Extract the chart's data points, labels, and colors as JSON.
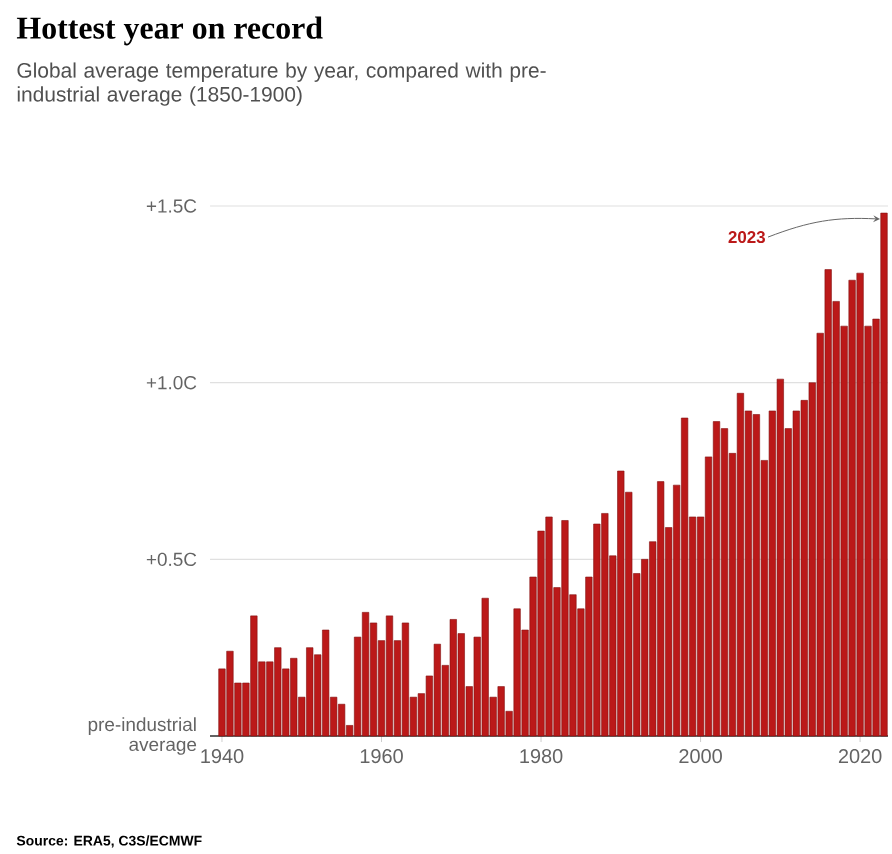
{
  "chart_data": {
    "type": "bar",
    "title": "Hottest year on record",
    "subtitle": "Global average temperature by year, compared with pre-industrial average (1850-1900)",
    "x": [
      1940,
      1941,
      1942,
      1943,
      1944,
      1945,
      1946,
      1947,
      1948,
      1949,
      1950,
      1951,
      1952,
      1953,
      1954,
      1955,
      1956,
      1957,
      1958,
      1959,
      1960,
      1961,
      1962,
      1963,
      1964,
      1965,
      1966,
      1967,
      1968,
      1969,
      1970,
      1971,
      1972,
      1973,
      1974,
      1975,
      1976,
      1977,
      1978,
      1979,
      1980,
      1981,
      1982,
      1983,
      1984,
      1985,
      1986,
      1987,
      1988,
      1989,
      1990,
      1991,
      1992,
      1993,
      1994,
      1995,
      1996,
      1997,
      1998,
      1999,
      2000,
      2001,
      2002,
      2003,
      2004,
      2005,
      2006,
      2007,
      2008,
      2009,
      2010,
      2011,
      2012,
      2013,
      2014,
      2015,
      2016,
      2017,
      2018,
      2019,
      2020,
      2021,
      2022,
      2023
    ],
    "values": [
      0.19,
      0.24,
      0.15,
      0.15,
      0.34,
      0.21,
      0.21,
      0.25,
      0.19,
      0.22,
      0.11,
      0.25,
      0.23,
      0.3,
      0.11,
      0.09,
      0.03,
      0.28,
      0.35,
      0.32,
      0.27,
      0.34,
      0.27,
      0.32,
      0.11,
      0.12,
      0.17,
      0.26,
      0.2,
      0.33,
      0.29,
      0.14,
      0.28,
      0.39,
      0.11,
      0.14,
      0.07,
      0.36,
      0.3,
      0.45,
      0.58,
      0.62,
      0.42,
      0.61,
      0.4,
      0.36,
      0.45,
      0.6,
      0.63,
      0.51,
      0.75,
      0.69,
      0.46,
      0.5,
      0.55,
      0.72,
      0.59,
      0.71,
      0.9,
      0.62,
      0.62,
      0.79,
      0.89,
      0.87,
      0.8,
      0.97,
      0.92,
      0.91,
      0.78,
      0.92,
      1.01,
      0.87,
      0.92,
      0.95,
      1.0,
      1.14,
      1.32,
      1.23,
      1.16,
      1.29,
      1.31,
      1.16,
      1.18,
      1.48
    ],
    "color": "#bb1919",
    "xlim": [
      1938.5,
      2023.5
    ],
    "xticks": [
      1940,
      1960,
      1980,
      2000,
      2020
    ],
    "ylim": [
      0,
      1.5
    ],
    "yticks": [
      {
        "value": 0,
        "label": "pre-industrial average"
      },
      {
        "value": 0.5,
        "label": "+0.5C"
      },
      {
        "value": 1.0,
        "label": "+1.0C"
      },
      {
        "value": 1.5,
        "label": "+1.5C"
      }
    ],
    "grid": "y",
    "annotations": [
      {
        "text": "2023",
        "x": 2023,
        "y": 1.48
      },
      "Source: ERA5, C3S/ECMWF"
    ]
  }
}
